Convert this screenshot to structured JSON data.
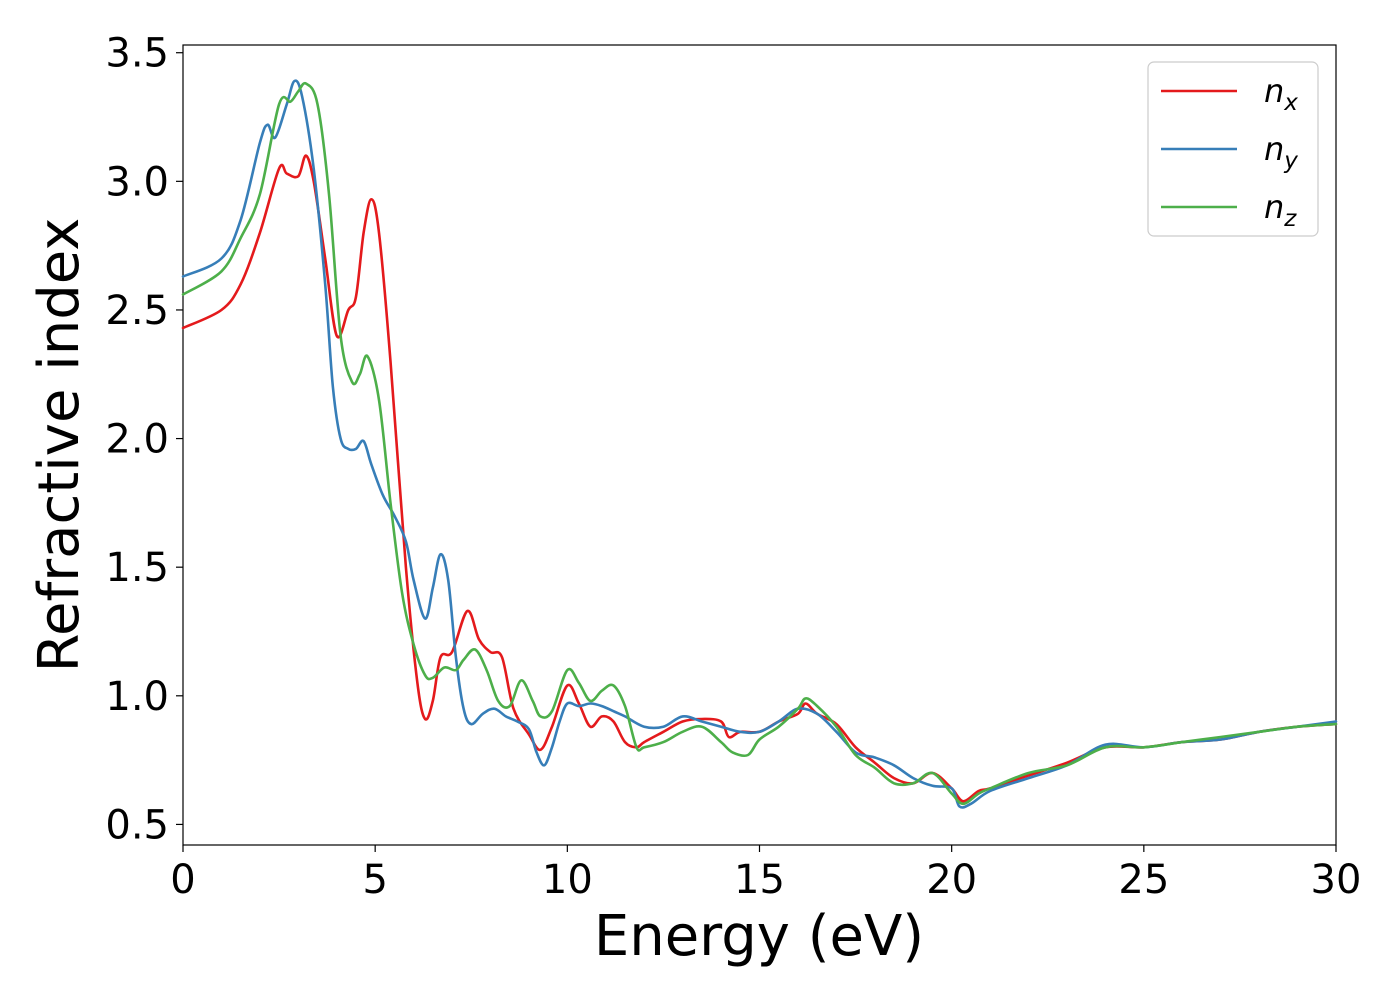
{
  "chart_data": {
    "type": "line",
    "xlabel": "Energy (eV)",
    "ylabel": "Refractive index",
    "xlim": [
      0,
      30
    ],
    "ylim": [
      0.42,
      3.53
    ],
    "xticks": [
      "0",
      "5",
      "10",
      "15",
      "20",
      "25",
      "30"
    ],
    "yticks": [
      "0.5",
      "1.0",
      "1.5",
      "2.0",
      "2.5",
      "3.0",
      "3.5"
    ],
    "grid": false,
    "legend_position": "top-right",
    "series": [
      {
        "name": "n",
        "subscript": "x",
        "color": "#e41a1c",
        "x": [
          0,
          1,
          1.5,
          2,
          2.5,
          2.7,
          3,
          3.2,
          3.4,
          3.7,
          4,
          4.3,
          4.5,
          4.7,
          4.9,
          5.1,
          5.4,
          5.8,
          6.1,
          6.3,
          6.5,
          6.7,
          7,
          7.4,
          7.7,
          8,
          8.3,
          8.6,
          9,
          9.3,
          9.6,
          10,
          10.3,
          10.6,
          10.9,
          11.2,
          11.5,
          11.8,
          12,
          12.5,
          13,
          13.5,
          14,
          14.2,
          14.5,
          15,
          15.5,
          16,
          16.2,
          16.5,
          17,
          17.5,
          18,
          18.5,
          19,
          19.5,
          20,
          20.3,
          20.7,
          21,
          22,
          23,
          24,
          25,
          26,
          27,
          28,
          29,
          30
        ],
        "y": [
          2.43,
          2.5,
          2.6,
          2.8,
          3.05,
          3.03,
          3.02,
          3.1,
          3.0,
          2.7,
          2.4,
          2.5,
          2.55,
          2.8,
          2.93,
          2.8,
          2.3,
          1.5,
          1.05,
          0.91,
          0.98,
          1.15,
          1.17,
          1.33,
          1.22,
          1.17,
          1.15,
          0.95,
          0.85,
          0.79,
          0.88,
          1.04,
          0.97,
          0.88,
          0.92,
          0.9,
          0.82,
          0.8,
          0.82,
          0.86,
          0.9,
          0.91,
          0.9,
          0.84,
          0.86,
          0.86,
          0.9,
          0.93,
          0.97,
          0.93,
          0.89,
          0.8,
          0.74,
          0.68,
          0.66,
          0.7,
          0.64,
          0.59,
          0.63,
          0.64,
          0.69,
          0.74,
          0.8,
          0.8,
          0.82,
          0.83,
          0.86,
          0.88,
          0.89
        ]
      },
      {
        "name": "n",
        "subscript": "y",
        "color": "#377eb8",
        "x": [
          0,
          1,
          1.5,
          2,
          2.2,
          2.4,
          2.7,
          2.9,
          3.1,
          3.4,
          3.7,
          3.9,
          4.1,
          4.3,
          4.5,
          4.7,
          4.9,
          5.2,
          5.5,
          5.8,
          6,
          6.3,
          6.5,
          6.7,
          6.9,
          7.1,
          7.3,
          7.5,
          7.8,
          8.1,
          8.4,
          8.7,
          9,
          9.2,
          9.4,
          9.6,
          9.8,
          10,
          10.3,
          10.6,
          10.9,
          11.2,
          11.5,
          12,
          12.5,
          13,
          13.5,
          14,
          14.5,
          15,
          15.5,
          16,
          16.5,
          17,
          17.5,
          18,
          18.5,
          19,
          19.5,
          20,
          20.2,
          20.5,
          21,
          22,
          23,
          24,
          25,
          26,
          27,
          28,
          29,
          30
        ],
        "y": [
          2.63,
          2.7,
          2.85,
          3.15,
          3.22,
          3.17,
          3.3,
          3.39,
          3.33,
          3.05,
          2.6,
          2.2,
          2.0,
          1.96,
          1.96,
          1.99,
          1.9,
          1.78,
          1.7,
          1.6,
          1.45,
          1.3,
          1.42,
          1.55,
          1.45,
          1.15,
          0.95,
          0.89,
          0.93,
          0.95,
          0.92,
          0.9,
          0.87,
          0.78,
          0.73,
          0.8,
          0.9,
          0.97,
          0.96,
          0.97,
          0.96,
          0.94,
          0.92,
          0.88,
          0.88,
          0.92,
          0.9,
          0.88,
          0.86,
          0.86,
          0.9,
          0.95,
          0.93,
          0.86,
          0.78,
          0.76,
          0.73,
          0.68,
          0.65,
          0.64,
          0.57,
          0.58,
          0.63,
          0.68,
          0.73,
          0.81,
          0.8,
          0.82,
          0.83,
          0.86,
          0.88,
          0.9
        ]
      },
      {
        "name": "n",
        "subscript": "z",
        "color": "#4daf4a",
        "x": [
          0,
          1,
          1.5,
          2,
          2.5,
          2.8,
          3,
          3.2,
          3.5,
          3.8,
          4.1,
          4.4,
          4.6,
          4.8,
          5.1,
          5.4,
          5.7,
          6,
          6.3,
          6.5,
          6.8,
          7.1,
          7.3,
          7.6,
          7.9,
          8.2,
          8.5,
          8.8,
          9.1,
          9.3,
          9.6,
          10,
          10.3,
          10.6,
          10.9,
          11.2,
          11.5,
          11.8,
          12,
          12.5,
          13,
          13.5,
          14,
          14.3,
          14.7,
          15,
          15.5,
          16,
          16.2,
          16.5,
          17,
          17.5,
          18,
          18.5,
          19,
          19.5,
          20,
          20.3,
          20.7,
          21,
          22,
          23,
          24,
          25,
          26,
          27,
          28,
          29,
          30
        ],
        "y": [
          2.56,
          2.65,
          2.78,
          2.95,
          3.3,
          3.31,
          3.35,
          3.38,
          3.3,
          2.95,
          2.4,
          2.22,
          2.25,
          2.32,
          2.15,
          1.75,
          1.4,
          1.2,
          1.08,
          1.07,
          1.11,
          1.1,
          1.14,
          1.18,
          1.1,
          0.98,
          0.96,
          1.06,
          0.98,
          0.92,
          0.94,
          1.1,
          1.05,
          0.98,
          1.02,
          1.04,
          0.96,
          0.8,
          0.8,
          0.82,
          0.86,
          0.88,
          0.82,
          0.78,
          0.77,
          0.83,
          0.88,
          0.95,
          0.99,
          0.96,
          0.88,
          0.77,
          0.72,
          0.66,
          0.66,
          0.7,
          0.62,
          0.58,
          0.62,
          0.64,
          0.7,
          0.73,
          0.8,
          0.8,
          0.82,
          0.84,
          0.86,
          0.88,
          0.89
        ]
      }
    ]
  }
}
